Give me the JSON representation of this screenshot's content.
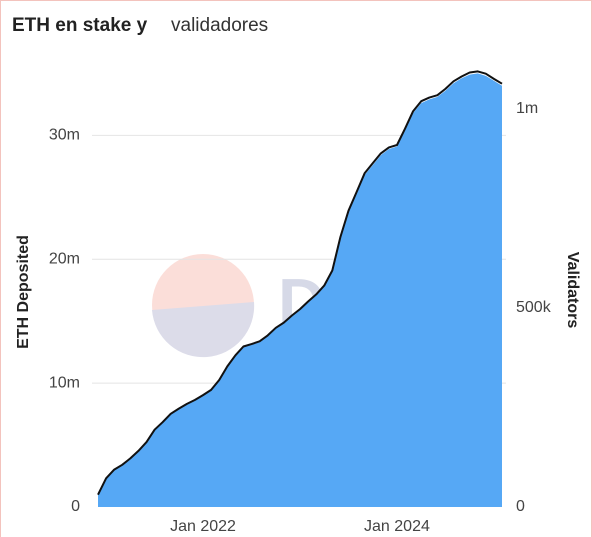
{
  "chart_data": {
    "type": "area",
    "title": "ETH en stake y",
    "subtitle": "validadores",
    "watermark": "Dune",
    "ylabel": "ETH Deposited",
    "y2label": "Validators",
    "x": [
      "2020-12",
      "2021-01",
      "2021-02",
      "2021-03",
      "2021-04",
      "2021-05",
      "2021-06",
      "2021-07",
      "2021-08",
      "2021-09",
      "2021-10",
      "2021-11",
      "2021-12",
      "2022-01",
      "2022-02",
      "2022-03",
      "2022-04",
      "2022-05",
      "2022-06",
      "2022-07",
      "2022-08",
      "2022-09",
      "2022-10",
      "2022-11",
      "2022-12",
      "2023-01",
      "2023-02",
      "2023-03",
      "2023-04",
      "2023-05",
      "2023-06",
      "2023-07",
      "2023-08",
      "2023-09",
      "2023-10",
      "2023-11",
      "2023-12",
      "2024-01",
      "2024-02",
      "2024-03",
      "2024-04",
      "2024-05",
      "2024-06",
      "2024-07",
      "2024-08",
      "2024-09",
      "2024-10",
      "2024-11",
      "2024-12",
      "2025-01",
      "2025-02"
    ],
    "series": [
      {
        "name": "ETH Deposited",
        "color": "#56a8f5",
        "values": [
          1000000,
          2300000,
          3000000,
          3400000,
          3900000,
          4500000,
          5200000,
          6200000,
          6800000,
          7500000,
          7900000,
          8300000,
          8600000,
          9000000,
          9400000,
          10200000,
          11300000,
          12200000,
          12900000,
          13100000,
          13300000,
          13800000,
          14400000,
          14800000,
          15400000,
          15900000,
          16500000,
          17100000,
          17800000,
          19000000,
          21700000,
          23800000,
          25300000,
          26800000,
          27600000,
          28400000,
          28900000,
          29100000,
          30400000,
          31800000,
          32600000,
          32900000,
          33100000,
          33600000,
          34200000,
          34600000,
          34900000,
          35000000,
          34800000,
          34400000,
          34000000
        ]
      },
      {
        "name": "Validators",
        "color": "#111111",
        "axis": "y2",
        "values": [
          31000,
          72000,
          94000,
          106000,
          122000,
          141000,
          163000,
          194000,
          213000,
          234000,
          247000,
          259000,
          269000,
          281000,
          294000,
          319000,
          353000,
          381000,
          403000,
          409000,
          416000,
          431000,
          450000,
          463000,
          481000,
          497000,
          516000,
          534000,
          556000,
          594000,
          678000,
          744000,
          791000,
          838000,
          863000,
          888000,
          903000,
          909000,
          950000,
          994000,
          1019000,
          1028000,
          1034000,
          1050000,
          1069000,
          1081000,
          1091000,
          1094000,
          1088000,
          1075000,
          1063000
        ]
      }
    ],
    "xlim": [
      "2020-12",
      "2025-02"
    ],
    "xticks": [
      {
        "value": "2022-01",
        "label": "Jan 2022"
      },
      {
        "value": "2024-01",
        "label": "Jan 2024"
      }
    ],
    "ylim": [
      0,
      36000000
    ],
    "yticks": [
      0,
      {
        "value": 10000000,
        "label": "10m"
      },
      {
        "value": 20000000,
        "label": "20m"
      },
      {
        "value": 30000000,
        "label": "30m"
      }
    ],
    "y2lim": [
      0,
      1120000
    ],
    "y2ticks": [
      0,
      {
        "value": 500000,
        "label": "500k"
      },
      {
        "value": 1000000,
        "label": "1m"
      }
    ],
    "grid": true
  }
}
